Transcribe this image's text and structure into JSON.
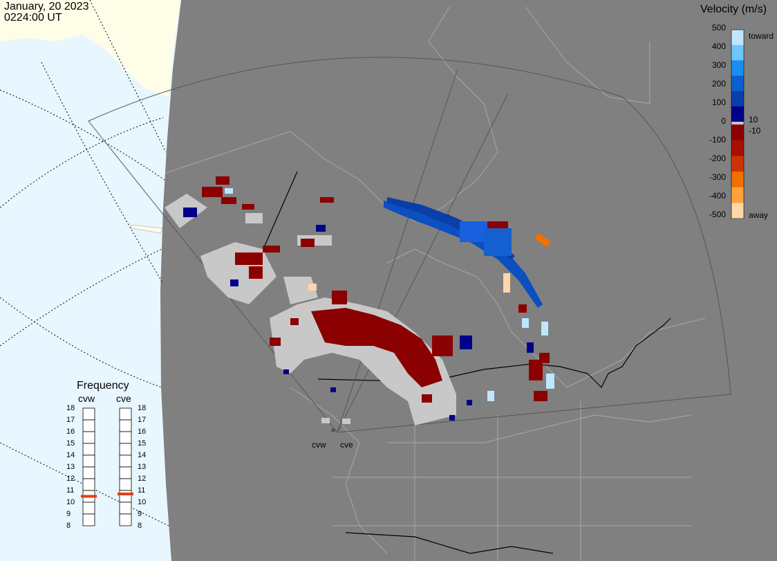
{
  "header": {
    "date": "January, 20 2023",
    "time": "0224:00 UT"
  },
  "velocity_scale": {
    "title": "Velocity (m/s)",
    "ticks": [
      "500",
      "400",
      "300",
      "200",
      "100",
      "0",
      "-100",
      "-200",
      "-300",
      "-400",
      "-500"
    ],
    "toward_label": "toward",
    "away_label": "away",
    "pos_threshold": "10",
    "neg_threshold": "-10",
    "colors": [
      "#bfe6ff",
      "#6cc6ff",
      "#1a8ef0",
      "#0b5fd0",
      "#0a3ea8",
      "#00008b",
      "#8b0000",
      "#a81000",
      "#cc3300",
      "#f07000",
      "#ffa23a",
      "#ffd6a8"
    ]
  },
  "frequency_panel": {
    "title": "Frequency",
    "radars": [
      {
        "name": "cvw",
        "frequency_mhz": 10.5
      },
      {
        "name": "cve",
        "frequency_mhz": 10.7
      }
    ],
    "scale": [
      "18",
      "17",
      "16",
      "15",
      "14",
      "13",
      "12",
      "11",
      "10",
      "9",
      "8"
    ]
  },
  "radar_sites": [
    {
      "label": "cvw"
    },
    {
      "label": "cve"
    }
  ],
  "colors": {
    "background_gray": "#808080",
    "ocean": "#e8f6ff",
    "land_outside": "#fdfde8",
    "groundscatter": "#c8c8c8",
    "frequency_marker": "#e04010"
  }
}
